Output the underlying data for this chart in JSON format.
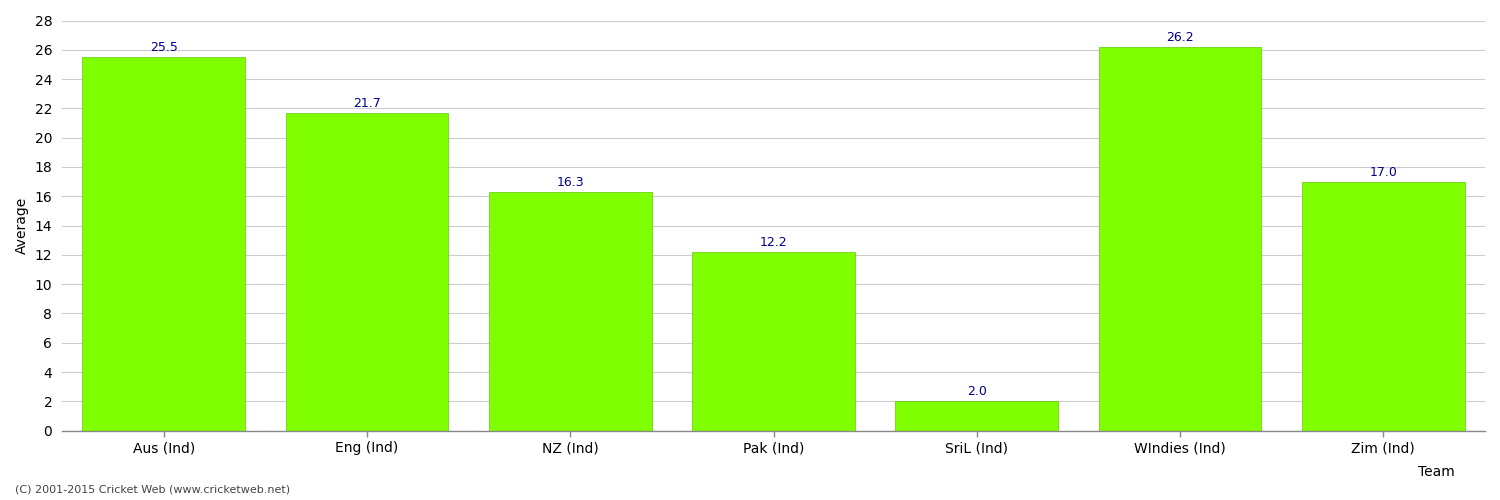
{
  "categories": [
    "Aus (Ind)",
    "Eng (Ind)",
    "NZ (Ind)",
    "Pak (Ind)",
    "SriL (Ind)",
    "WIndies (Ind)",
    "Zim (Ind)"
  ],
  "values": [
    25.5,
    21.7,
    16.3,
    12.2,
    2.0,
    26.2,
    17.0
  ],
  "bar_color": "#7fff00",
  "bar_edge_color": "#5ecb00",
  "value_color": "#00008b",
  "xlabel": "Team",
  "ylabel": "Average",
  "ylim": [
    0,
    28
  ],
  "yticks": [
    0,
    2,
    4,
    6,
    8,
    10,
    12,
    14,
    16,
    18,
    20,
    22,
    24,
    26,
    28
  ],
  "grid_color": "#cccccc",
  "background_color": "#ffffff",
  "footer_text": "(C) 2001-2015 Cricket Web (www.cricketweb.net)",
  "value_fontsize": 9,
  "label_fontsize": 10,
  "tick_fontsize": 10
}
